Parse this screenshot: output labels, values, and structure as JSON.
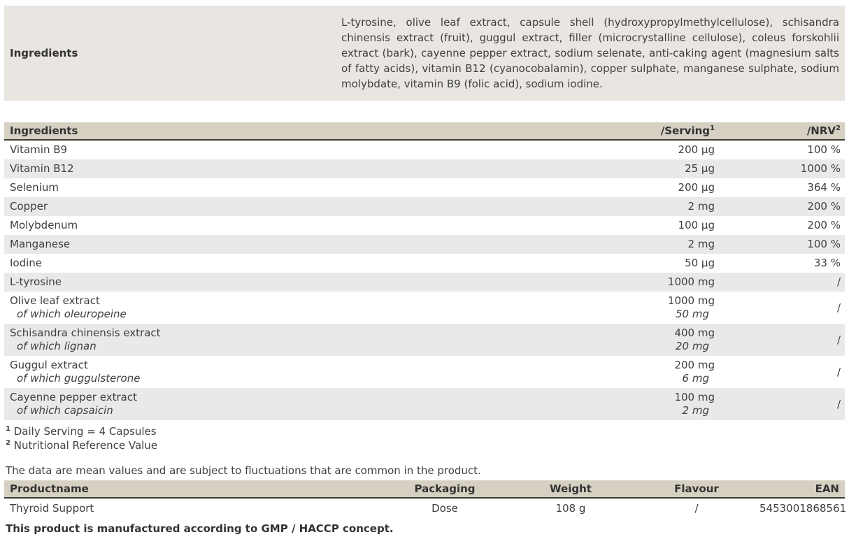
{
  "colors": {
    "header_bg": "#d6d0c2",
    "block_bg": "#e9e6e2",
    "stripe_bg": "#e9e9e9",
    "border_dark": "#3c3b36",
    "text": "#3f3f3f"
  },
  "top_section": {
    "label": "Ingredients",
    "text": "L-tyrosine, olive leaf extract, capsule shell (hydroxypropylmethylcellulose), schisandra chinensis extract (fruit), guggul extract, filler (microcrystalline cellulose), coleus forskohlii extract (bark), cayenne pepper extract, sodium selenate, anti-caking agent (magnesium salts of fatty acids), vitamin B12 (cyanocobalamin), copper sulphate, manganese sulphate, sodium molybdate, vitamin B9 (folic acid), sodium iodine."
  },
  "nutrition_table": {
    "headers": {
      "ingredient": "Ingredients",
      "serving_label": "/Serving",
      "serving_sup": "1",
      "nrv_label": "/NRV",
      "nrv_sup": "2"
    },
    "rows": [
      {
        "name": "Vitamin B9",
        "serving": "200 µg",
        "nrv": "100 %"
      },
      {
        "name": "Vitamin B12",
        "serving": "25 µg",
        "nrv": "1000 %"
      },
      {
        "name": "Selenium",
        "serving": "200 µg",
        "nrv": "364 %"
      },
      {
        "name": "Copper",
        "serving": "2 mg",
        "nrv": "200 %"
      },
      {
        "name": "Molybdenum",
        "serving": "100 µg",
        "nrv": "200 %"
      },
      {
        "name": "Manganese",
        "serving": "2 mg",
        "nrv": "100 %"
      },
      {
        "name": "Iodine",
        "serving": "50 µg",
        "nrv": "33 %"
      },
      {
        "name": "L-tyrosine",
        "serving": "1000 mg",
        "nrv": "/"
      },
      {
        "name": "Olive leaf extract",
        "sub": "of which oleuropeine",
        "serving": "1000 mg",
        "serving_sub": "50 mg",
        "nrv": "/"
      },
      {
        "name": "Schisandra chinensis extract",
        "sub": "of which lignan",
        "serving": "400 mg",
        "serving_sub": "20 mg",
        "nrv": "/"
      },
      {
        "name": "Guggul extract",
        "sub": "of which guggulsterone",
        "serving": "200 mg",
        "serving_sub": "6 mg",
        "nrv": "/"
      },
      {
        "name": "Cayenne pepper extract",
        "sub": "of which capsaicin",
        "serving": "100 mg",
        "serving_sub": "2 mg",
        "nrv": "/"
      }
    ]
  },
  "footnotes": [
    {
      "sup": "1",
      "text": "Daily Serving = 4 Capsules"
    },
    {
      "sup": "2",
      "text": "Nutritional Reference Value"
    }
  ],
  "disclaimer": "The data are mean values and are subject to fluctuations that are common in the product.",
  "product_table": {
    "headers": [
      "Productname",
      "Packaging",
      "Weight",
      "Flavour",
      "EAN"
    ],
    "rows": [
      [
        "Thyroid Support",
        "Dose",
        "108 g",
        "/",
        "5453001868561"
      ]
    ]
  },
  "manufacturing_note": "This product is manufactured according to GMP / HACCP concept."
}
